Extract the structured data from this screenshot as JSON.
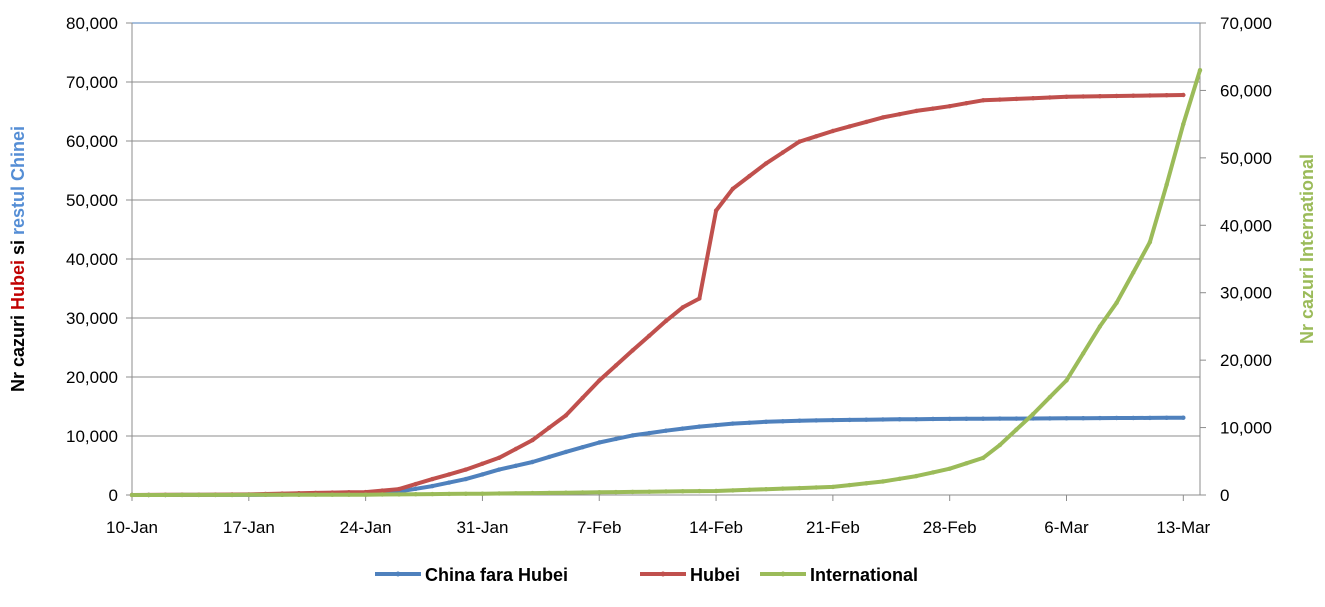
{
  "chart_data": {
    "type": "line",
    "x_axis": {
      "ticks": [
        "10-Jan",
        "17-Jan",
        "24-Jan",
        "31-Jan",
        "7-Feb",
        "14-Feb",
        "21-Feb",
        "28-Feb",
        "6-Mar",
        "13-Mar"
      ]
    },
    "y_left": {
      "ylim": [
        0,
        80000
      ],
      "ticks": [
        "0",
        "10,000",
        "20,000",
        "30,000",
        "40,000",
        "50,000",
        "60,000",
        "70,000",
        "80,000"
      ],
      "label_parts": [
        {
          "text": "Nr cazuri  ",
          "color": "#000000"
        },
        {
          "text": "Hubei",
          "color": "#c00000"
        },
        {
          "text": " si ",
          "color": "#000000"
        },
        {
          "text": "restul Chinei",
          "color": "#558ed5"
        }
      ]
    },
    "y_right": {
      "ylim": [
        0,
        70000
      ],
      "ticks": [
        "0",
        "10,000",
        "20,000",
        "30,000",
        "40,000",
        "50,000",
        "60,000",
        "70,000"
      ],
      "label": "Nr cazuri International",
      "label_color": "#9bbb59"
    },
    "legend_position": "bottom",
    "grid": true,
    "series": [
      {
        "name": "China fara Hubei",
        "color": "#4f81bd",
        "axis": "left",
        "x": [
          "10-Jan",
          "17-Jan",
          "24-Jan",
          "26-Jan",
          "28-Jan",
          "30-Jan",
          "1-Feb",
          "3-Feb",
          "5-Feb",
          "7-Feb",
          "9-Feb",
          "11-Feb",
          "13-Feb",
          "15-Feb",
          "17-Feb",
          "19-Feb",
          "21-Feb",
          "24-Feb",
          "28-Feb",
          "6-Mar",
          "13-Mar"
        ],
        "values": [
          0,
          20,
          200,
          600,
          1500,
          2700,
          4300,
          5600,
          7300,
          8900,
          10100,
          10900,
          11600,
          12100,
          12400,
          12600,
          12700,
          12800,
          12900,
          13000,
          13100
        ]
      },
      {
        "name": "Hubei",
        "color": "#c0504d",
        "axis": "left",
        "x": [
          "10-Jan",
          "17-Jan",
          "20-Jan",
          "24-Jan",
          "26-Jan",
          "28-Jan",
          "30-Jan",
          "1-Feb",
          "3-Feb",
          "5-Feb",
          "7-Feb",
          "9-Feb",
          "11-Feb",
          "12-Feb",
          "13-Feb",
          "14-Feb",
          "15-Feb",
          "17-Feb",
          "19-Feb",
          "21-Feb",
          "24-Feb",
          "26-Feb",
          "28-Feb",
          "1-Mar",
          "6-Mar",
          "13-Mar"
        ],
        "values": [
          0,
          100,
          300,
          500,
          1000,
          2700,
          4300,
          6300,
          9300,
          13500,
          19400,
          24500,
          29500,
          31800,
          33300,
          48200,
          51900,
          56200,
          59900,
          61700,
          64000,
          65100,
          65900,
          66900,
          67500,
          67800
        ]
      },
      {
        "name": "International",
        "color": "#9bbb59",
        "axis": "right",
        "x": [
          "10-Jan",
          "24-Jan",
          "31-Jan",
          "7-Feb",
          "14-Feb",
          "21-Feb",
          "24-Feb",
          "26-Feb",
          "28-Feb",
          "1-Mar",
          "2-Mar",
          "4-Mar",
          "6-Mar",
          "8-Mar",
          "9-Mar",
          "10-Mar",
          "11-Mar",
          "12-Mar",
          "13-Mar",
          "14-Mar"
        ],
        "values": [
          0,
          50,
          200,
          400,
          600,
          1200,
          2000,
          2800,
          3900,
          5500,
          7400,
          12000,
          17000,
          25000,
          28500,
          33000,
          37500,
          46000,
          55000,
          63000
        ]
      }
    ]
  }
}
